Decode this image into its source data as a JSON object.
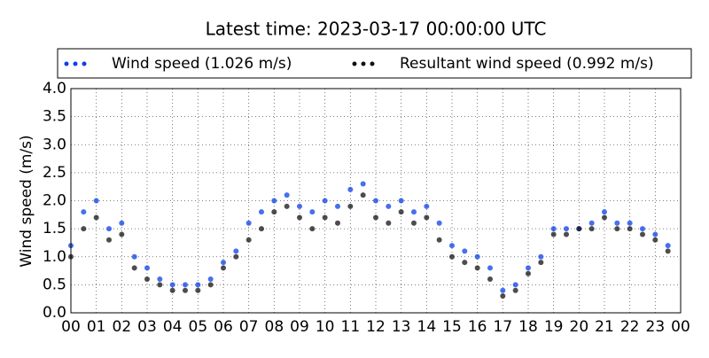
{
  "chart_data": {
    "type": "scatter",
    "title": "Latest time: 2023-03-17 00:00:00 UTC",
    "y_label": "Wind speed (m/s)",
    "x": [
      0,
      0.5,
      1,
      1.5,
      2,
      2.5,
      3,
      3.5,
      4,
      4.5,
      5,
      5.5,
      6,
      6.5,
      7,
      7.5,
      8,
      8.5,
      9,
      9.5,
      10,
      10.5,
      11,
      11.5,
      12,
      12.5,
      13,
      13.5,
      14,
      14.5,
      15,
      15.5,
      16,
      16.5,
      17,
      17.5,
      18,
      18.5,
      19,
      19.5,
      20,
      20.5,
      21,
      21.5,
      22,
      22.5,
      23,
      23.5
    ],
    "series": [
      {
        "name": "Wind speed (1.026 m/s)",
        "color": "#0a3fe8",
        "values": [
          1.2,
          1.8,
          2.0,
          1.5,
          1.6,
          1.0,
          0.8,
          0.6,
          0.5,
          0.5,
          0.5,
          0.6,
          0.9,
          1.1,
          1.6,
          1.8,
          2.0,
          2.1,
          1.9,
          1.8,
          2.0,
          1.9,
          2.2,
          2.3,
          2.0,
          1.9,
          2.0,
          1.8,
          1.9,
          1.6,
          1.2,
          1.1,
          1.0,
          0.8,
          0.4,
          0.5,
          0.8,
          1.0,
          1.5,
          1.5,
          1.5,
          1.6,
          1.8,
          1.6,
          1.6,
          1.5,
          1.4,
          1.2
        ]
      },
      {
        "name": "Resultant wind speed (0.992 m/s)",
        "color": "#111111",
        "values": [
          1.0,
          1.5,
          1.7,
          1.3,
          1.4,
          0.8,
          0.6,
          0.5,
          0.4,
          0.4,
          0.4,
          0.5,
          0.8,
          1.0,
          1.3,
          1.5,
          1.8,
          1.9,
          1.7,
          1.5,
          1.7,
          1.6,
          1.9,
          2.1,
          1.7,
          1.6,
          1.8,
          1.6,
          1.7,
          1.3,
          1.0,
          0.9,
          0.8,
          0.6,
          0.3,
          0.4,
          0.7,
          0.9,
          1.4,
          1.4,
          1.5,
          1.5,
          1.7,
          1.5,
          1.5,
          1.4,
          1.3,
          1.1
        ]
      }
    ],
    "xlim": [
      0,
      24
    ],
    "xticks": [
      {
        "value": 0,
        "label": "00"
      },
      {
        "value": 1,
        "label": "01"
      },
      {
        "value": 2,
        "label": "02"
      },
      {
        "value": 3,
        "label": "03"
      },
      {
        "value": 4,
        "label": "04"
      },
      {
        "value": 5,
        "label": "05"
      },
      {
        "value": 6,
        "label": "06"
      },
      {
        "value": 7,
        "label": "07"
      },
      {
        "value": 8,
        "label": "08"
      },
      {
        "value": 9,
        "label": "09"
      },
      {
        "value": 10,
        "label": "10"
      },
      {
        "value": 11,
        "label": "11"
      },
      {
        "value": 12,
        "label": "12"
      },
      {
        "value": 13,
        "label": "13"
      },
      {
        "value": 14,
        "label": "14"
      },
      {
        "value": 15,
        "label": "15"
      },
      {
        "value": 16,
        "label": "16"
      },
      {
        "value": 17,
        "label": "17"
      },
      {
        "value": 18,
        "label": "18"
      },
      {
        "value": 19,
        "label": "19"
      },
      {
        "value": 20,
        "label": "20"
      },
      {
        "value": 21,
        "label": "21"
      },
      {
        "value": 22,
        "label": "22"
      },
      {
        "value": 23,
        "label": "23"
      },
      {
        "value": 24,
        "label": "00"
      }
    ],
    "ylim": [
      0,
      4
    ],
    "yticks": [
      {
        "value": 0,
        "label": "0.0"
      },
      {
        "value": 0.5,
        "label": "0.5"
      },
      {
        "value": 1,
        "label": "1.0"
      },
      {
        "value": 1.5,
        "label": "1.5"
      },
      {
        "value": 2,
        "label": "2.0"
      },
      {
        "value": 2.5,
        "label": "2.5"
      },
      {
        "value": 3,
        "label": "3.0"
      },
      {
        "value": 3.5,
        "label": "3.5"
      },
      {
        "value": 4,
        "label": "4.0"
      }
    ],
    "grid": true
  }
}
